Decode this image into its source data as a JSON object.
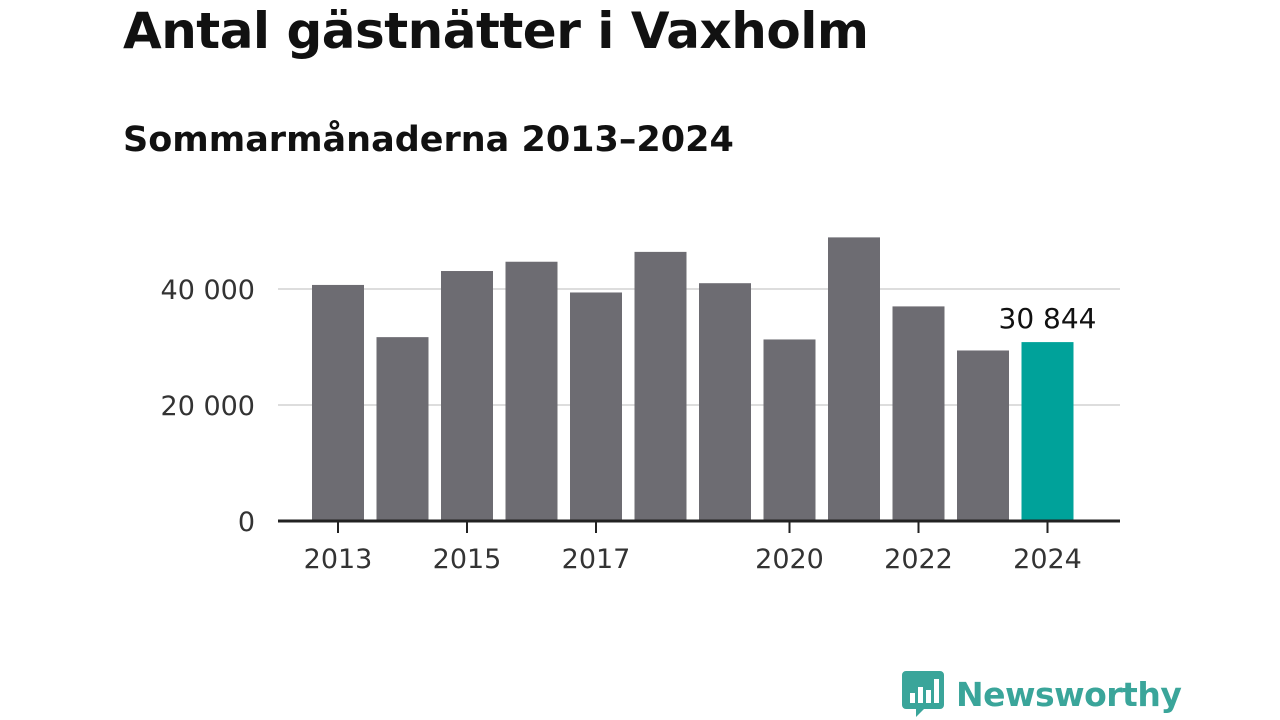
{
  "chart_data": {
    "type": "bar",
    "title": "Antal gästnätter i Vaxholm",
    "subtitle": "Sommarmånaderna 2013–2024",
    "categories": [
      "2013",
      "2014",
      "2015",
      "2016",
      "2017",
      "2018",
      "2019",
      "2020",
      "2021",
      "2022",
      "2023",
      "2024"
    ],
    "values": [
      40700,
      31700,
      43100,
      44700,
      39400,
      46400,
      41000,
      31300,
      48900,
      37000,
      29400,
      30844
    ],
    "x_tick_labels": [
      "2013",
      "2015",
      "2017",
      "2020",
      "2022",
      "2024"
    ],
    "y_ticks": [
      0,
      20000,
      40000
    ],
    "y_tick_labels": [
      "0",
      "20 000",
      "40 000"
    ],
    "ylim": [
      0,
      52000
    ],
    "grid": true,
    "highlight": {
      "index": 11,
      "label": "30 844"
    },
    "colors": {
      "bar": "#6d6c72",
      "highlight": "#00a29a",
      "grid": "#dddddd",
      "axis": "#222222"
    }
  },
  "logo": {
    "text": "Newsworthy",
    "color": "#3aa59a",
    "icon": "chat-bubble-bar-chart-icon"
  }
}
